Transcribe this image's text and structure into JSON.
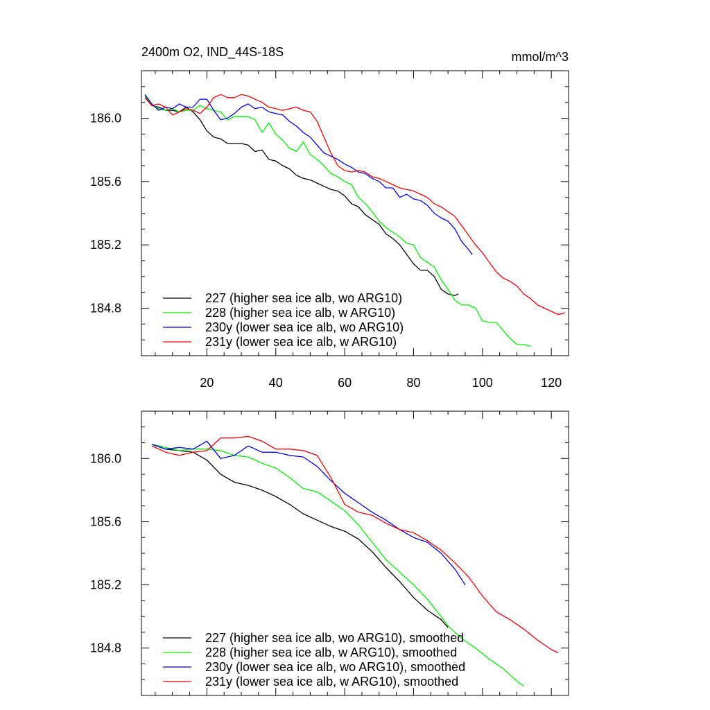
{
  "title_left": "2400m O2, IND_44S-18S",
  "title_right": "mmol/m^3",
  "colors": {
    "227": "#000000",
    "228": "#00ee00",
    "230y": "#0000ee",
    "231y": "#ee0000"
  },
  "chart_data": [
    {
      "type": "line",
      "title": "2400m O2, IND_44S-18S",
      "units": "mmol/m^3",
      "xlim": [
        1,
        125
      ],
      "ylim": [
        184.5,
        186.3
      ],
      "xticks": [
        20,
        40,
        60,
        80,
        100,
        120
      ],
      "yticks": [
        184.8,
        185.2,
        185.6,
        186.0
      ],
      "ytick_labels": [
        "184.8",
        "185.2",
        "185.6",
        "186.0"
      ],
      "legend_position": "bottom-left",
      "series": [
        {
          "key": "227",
          "name": "227 (higher sea ice alb, wo ARG10)",
          "x": [
            2,
            4,
            6,
            8,
            10,
            12,
            14,
            16,
            18,
            20,
            22,
            24,
            26,
            28,
            30,
            32,
            34,
            36,
            38,
            40,
            42,
            44,
            46,
            48,
            50,
            52,
            54,
            56,
            58,
            60,
            62,
            64,
            66,
            68,
            70,
            72,
            74,
            76,
            78,
            80,
            82,
            84,
            86,
            88,
            90,
            92,
            93
          ],
          "y": [
            186.14,
            186.08,
            186.07,
            186.05,
            186.05,
            186.04,
            186.07,
            186.04,
            185.99,
            185.92,
            185.88,
            185.87,
            185.84,
            185.84,
            185.84,
            185.83,
            185.79,
            185.8,
            185.74,
            185.73,
            185.7,
            185.68,
            185.64,
            185.62,
            185.61,
            185.59,
            185.57,
            185.55,
            185.54,
            185.51,
            185.46,
            185.44,
            185.39,
            185.36,
            185.33,
            185.27,
            185.24,
            185.2,
            185.14,
            185.08,
            185.04,
            185.04,
            185.0,
            184.92,
            184.89,
            184.88,
            184.89
          ]
        },
        {
          "key": "228",
          "name": "228 (higher sea ice alb, w ARG10)",
          "x": [
            2,
            4,
            6,
            8,
            10,
            12,
            14,
            16,
            18,
            20,
            22,
            24,
            26,
            28,
            30,
            32,
            34,
            36,
            38,
            40,
            42,
            44,
            46,
            48,
            50,
            52,
            54,
            56,
            58,
            60,
            62,
            64,
            66,
            68,
            70,
            72,
            74,
            76,
            78,
            80,
            82,
            84,
            86,
            88,
            90,
            92,
            94,
            96,
            98,
            100,
            102,
            104,
            106,
            108,
            110,
            112,
            114
          ],
          "y": [
            186.14,
            186.09,
            186.06,
            186.05,
            186.06,
            186.04,
            186.05,
            186.05,
            186.08,
            186.06,
            186.05,
            186.04,
            185.99,
            186.01,
            186.01,
            186.01,
            185.99,
            185.91,
            185.97,
            185.9,
            185.86,
            185.81,
            185.79,
            185.85,
            185.77,
            185.74,
            185.7,
            185.65,
            185.63,
            185.6,
            185.58,
            185.5,
            185.46,
            185.41,
            185.35,
            185.31,
            185.28,
            185.25,
            185.21,
            185.2,
            185.12,
            185.09,
            185.06,
            184.98,
            184.92,
            184.85,
            184.82,
            184.82,
            184.8,
            184.72,
            184.71,
            184.71,
            184.66,
            184.61,
            184.57,
            184.57,
            184.56
          ]
        },
        {
          "key": "230y",
          "name": "230y (lower sea ice alb, wo ARG10)",
          "x": [
            2,
            4,
            6,
            8,
            10,
            12,
            14,
            16,
            18,
            20,
            22,
            24,
            26,
            28,
            30,
            32,
            34,
            36,
            38,
            40,
            42,
            44,
            46,
            48,
            50,
            52,
            54,
            56,
            58,
            60,
            62,
            64,
            66,
            68,
            70,
            72,
            74,
            76,
            78,
            80,
            82,
            84,
            86,
            88,
            90,
            92,
            94,
            96,
            97
          ],
          "y": [
            186.15,
            186.09,
            186.05,
            186.07,
            186.06,
            186.09,
            186.07,
            186.07,
            186.12,
            186.12,
            186.05,
            185.99,
            186.0,
            186.03,
            186.07,
            186.09,
            186.06,
            186.07,
            186.04,
            186.03,
            186.02,
            185.98,
            185.95,
            185.91,
            185.88,
            185.83,
            185.78,
            185.76,
            185.74,
            185.71,
            185.69,
            185.66,
            185.65,
            185.62,
            185.6,
            185.56,
            185.56,
            185.5,
            185.52,
            185.49,
            185.48,
            185.45,
            185.4,
            185.37,
            185.35,
            185.3,
            185.22,
            185.17,
            185.14
          ]
        },
        {
          "key": "231y",
          "name": "231y (lower sea ice alb, w ARG10)",
          "x": [
            2,
            4,
            6,
            8,
            10,
            12,
            14,
            16,
            18,
            20,
            22,
            24,
            26,
            28,
            30,
            32,
            34,
            36,
            38,
            40,
            42,
            44,
            46,
            48,
            50,
            52,
            54,
            56,
            58,
            60,
            62,
            64,
            66,
            68,
            70,
            72,
            74,
            76,
            78,
            80,
            82,
            84,
            86,
            88,
            90,
            92,
            94,
            96,
            98,
            100,
            102,
            104,
            106,
            108,
            110,
            112,
            114,
            116,
            118,
            120,
            122,
            124
          ],
          "y": [
            186.13,
            186.08,
            186.09,
            186.07,
            186.02,
            186.04,
            186.06,
            186.05,
            186.03,
            186.07,
            186.13,
            186.15,
            186.13,
            186.13,
            186.15,
            186.14,
            186.12,
            186.1,
            186.07,
            186.06,
            186.05,
            186.06,
            186.07,
            186.05,
            186.04,
            185.98,
            185.88,
            185.78,
            185.7,
            185.67,
            185.66,
            185.67,
            185.66,
            185.63,
            185.62,
            185.6,
            185.58,
            185.56,
            185.55,
            185.54,
            185.52,
            185.5,
            185.46,
            185.44,
            185.41,
            185.38,
            185.32,
            185.26,
            185.2,
            185.15,
            185.09,
            185.03,
            184.99,
            184.97,
            184.94,
            184.89,
            184.86,
            184.82,
            184.8,
            184.78,
            184.76,
            184.77
          ]
        }
      ]
    },
    {
      "type": "line",
      "title": "",
      "units": "",
      "xlim": [
        1,
        125
      ],
      "ylim": [
        184.5,
        186.3
      ],
      "xticks": [
        20,
        40,
        60,
        80,
        100,
        120
      ],
      "yticks": [
        184.8,
        185.2,
        185.6,
        186.0
      ],
      "ytick_labels": [
        "184.8",
        "185.2",
        "185.6",
        "186.0"
      ],
      "legend_position": "bottom-left",
      "series": [
        {
          "key": "227",
          "name": "227 (higher sea ice alb, wo ARG10), smoothed",
          "x": [
            4,
            8,
            12,
            16,
            20,
            24,
            28,
            32,
            36,
            40,
            44,
            48,
            52,
            56,
            60,
            64,
            68,
            72,
            76,
            80,
            84,
            88,
            90
          ],
          "y": [
            186.09,
            186.06,
            186.05,
            186.04,
            185.99,
            185.9,
            185.85,
            185.83,
            185.8,
            185.76,
            185.71,
            185.65,
            185.61,
            185.57,
            185.54,
            185.49,
            185.41,
            185.31,
            185.22,
            185.12,
            185.04,
            184.98,
            184.93
          ]
        },
        {
          "key": "228",
          "name": "228 (higher sea ice alb, w ARG10), smoothed",
          "x": [
            4,
            8,
            12,
            16,
            20,
            24,
            28,
            32,
            36,
            40,
            44,
            48,
            52,
            56,
            60,
            64,
            68,
            72,
            76,
            80,
            84,
            88,
            90,
            94,
            98,
            102,
            106,
            110,
            112
          ],
          "y": [
            186.09,
            186.07,
            186.05,
            186.06,
            186.06,
            186.05,
            186.02,
            186.01,
            185.97,
            185.94,
            185.88,
            185.81,
            185.79,
            185.73,
            185.67,
            185.58,
            185.47,
            185.36,
            185.28,
            185.2,
            185.11,
            185.0,
            184.94,
            184.86,
            184.8,
            184.73,
            184.67,
            184.59,
            184.56
          ]
        },
        {
          "key": "230y",
          "name": "230y (lower sea ice alb, wo ARG10), smoothed",
          "x": [
            4,
            8,
            12,
            16,
            20,
            24,
            28,
            32,
            36,
            40,
            44,
            48,
            52,
            56,
            60,
            64,
            68,
            72,
            76,
            80,
            84,
            88,
            92,
            95
          ],
          "y": [
            186.09,
            186.06,
            186.07,
            186.06,
            186.11,
            186.0,
            186.02,
            186.08,
            186.04,
            186.04,
            186.02,
            186.01,
            185.95,
            185.86,
            185.78,
            185.72,
            185.66,
            185.61,
            185.55,
            185.5,
            185.47,
            185.4,
            185.3,
            185.2
          ]
        },
        {
          "key": "231y",
          "name": "231y (lower sea ice alb, w ARG10), smoothed",
          "x": [
            4,
            8,
            12,
            16,
            20,
            24,
            28,
            32,
            36,
            40,
            44,
            48,
            52,
            56,
            60,
            64,
            68,
            72,
            76,
            80,
            84,
            88,
            92,
            96,
            100,
            104,
            108,
            112,
            116,
            120,
            122
          ],
          "y": [
            186.08,
            186.04,
            186.02,
            186.04,
            186.05,
            186.13,
            186.13,
            186.14,
            186.11,
            186.06,
            186.06,
            186.05,
            186.02,
            185.88,
            185.71,
            185.66,
            185.64,
            185.59,
            185.55,
            185.53,
            185.48,
            185.42,
            185.34,
            185.25,
            185.13,
            185.03,
            184.98,
            184.92,
            184.85,
            184.79,
            184.77
          ]
        }
      ]
    }
  ]
}
